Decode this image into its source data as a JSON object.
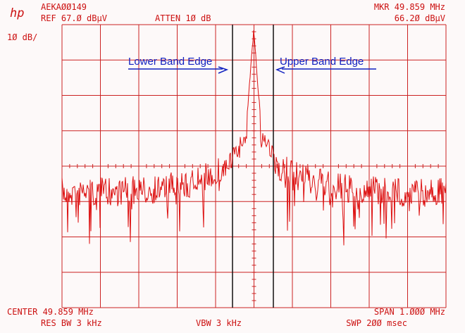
{
  "header": {
    "logo": "hp",
    "id": "AEKAØØ149",
    "ref": "REF 67.Ø dBµV",
    "atten": "ATTEN 1Ø dB",
    "scale": "1Ø dB/",
    "marker_freq": "MKR 49.859 MHz",
    "marker_level": "66.2Ø dBµV"
  },
  "annotations": {
    "lower": "Lower Band Edge",
    "upper": "Upper Band Edge"
  },
  "footer": {
    "center": "CENTER 49.859 MHz",
    "res_bw": "RES BW 3 kHz",
    "vbw": "VBW 3 kHz",
    "span": "SPAN 1.ØØØ MHz",
    "sweep": "SWP 2ØØ msec"
  }
}
